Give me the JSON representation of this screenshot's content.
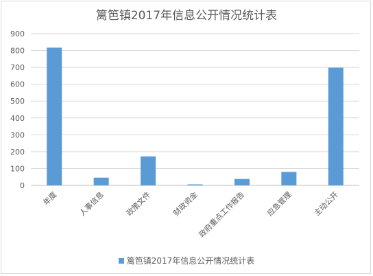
{
  "chart_data": {
    "type": "bar",
    "title": "篱笆镇2017年信息公开情况统计表",
    "categories": [
      "年度",
      "人事信息",
      "政策文件",
      "财政资金",
      "政府重点工作报告",
      "应急管理",
      "主动公开"
    ],
    "series": [
      {
        "name": "篱笆镇2017年信息公开情况统计表",
        "values": [
          817,
          46,
          172,
          6,
          38,
          80,
          698
        ],
        "color": "#5b9bd5"
      }
    ],
    "ylim": [
      0,
      900
    ],
    "yticks": [
      0,
      100,
      200,
      300,
      400,
      500,
      600,
      700,
      800,
      900
    ],
    "grid": true,
    "legend_position": "bottom"
  }
}
